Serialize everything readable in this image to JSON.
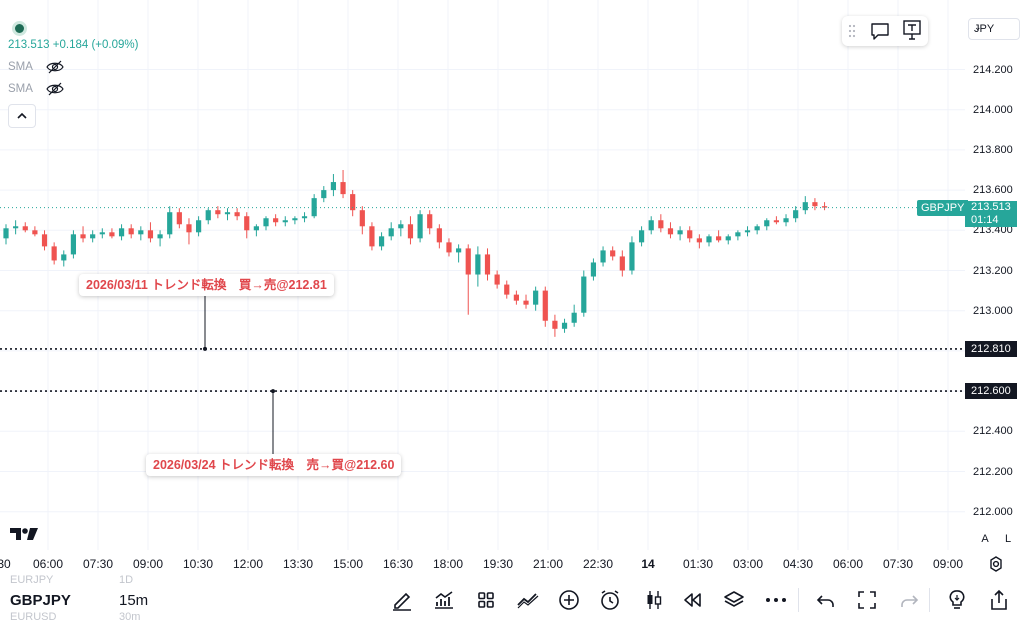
{
  "legend": {
    "price_line": "213.513 +0.184 (+0.09%)",
    "indicators": [
      "SMA",
      "SMA"
    ]
  },
  "currency": {
    "selected": "JPY"
  },
  "price_axis": {
    "ticks": [
      "214.200",
      "214.000",
      "213.800",
      "213.600",
      "213.400",
      "213.200",
      "213.000",
      "212.800",
      "212.600",
      "212.400",
      "212.200",
      "212.000"
    ]
  },
  "current_price": {
    "symbol_label": "GBPJPY",
    "price": "213.513",
    "countdown": "01:14",
    "value": 213.513
  },
  "horizontal_lines": [
    {
      "label": "212.810",
      "value": 212.81
    },
    {
      "label": "212.600",
      "value": 212.6
    }
  ],
  "notes": {
    "upper": "2026/03/11 トレンド転換　買→売@212.81",
    "lower": "2026/03/24 トレンド転換　売→買@212.60"
  },
  "time_axis": {
    "ticks": [
      "30",
      "06:00",
      "07:30",
      "09:00",
      "10:30",
      "12:00",
      "13:30",
      "15:00",
      "16:30",
      "18:00",
      "19:30",
      "21:00",
      "22:30",
      "14",
      "01:30",
      "03:00",
      "04:30",
      "06:00",
      "07:30",
      "09:00"
    ]
  },
  "scale_buttons": {
    "auto": "A",
    "log": "L"
  },
  "bottom": {
    "symbol_prev": "EURJPY",
    "symbol": "GBPJPY",
    "symbol_next": "EURUSD",
    "tf_prev": "1D",
    "tf": "15m",
    "tf_next": "30m"
  },
  "colors": {
    "up": "#26a69a",
    "down": "#ef5350",
    "note_text": "#e0474c",
    "price_box": "#26a69a"
  },
  "icons": [
    "pencil-icon",
    "indicators-icon",
    "grid-icon",
    "trend-icon",
    "plus-circle-icon",
    "alarm-icon",
    "candles-icon",
    "replay-icon",
    "layers-icon",
    "more-icon",
    "undo-icon",
    "fullscreen-icon",
    "redo-icon",
    "idea-icon",
    "share-icon"
  ],
  "chart_data": {
    "type": "candlestick",
    "symbol": "GBPJPY",
    "interval": "15m",
    "ylim": [
      211.96,
      214.32
    ],
    "candles": [
      [
        213.36,
        213.43,
        213.33,
        213.41
      ],
      [
        213.41,
        213.45,
        213.38,
        213.42
      ],
      [
        213.42,
        213.44,
        213.39,
        213.4
      ],
      [
        213.4,
        213.42,
        213.37,
        213.38
      ],
      [
        213.38,
        213.4,
        213.3,
        213.32
      ],
      [
        213.32,
        213.34,
        213.23,
        213.25
      ],
      [
        213.25,
        213.3,
        213.22,
        213.28
      ],
      [
        213.28,
        213.4,
        213.26,
        213.38
      ],
      [
        213.38,
        213.42,
        213.34,
        213.36
      ],
      [
        213.36,
        213.4,
        213.34,
        213.38
      ],
      [
        213.38,
        213.41,
        213.36,
        213.39
      ],
      [
        213.39,
        213.41,
        213.36,
        213.37
      ],
      [
        213.37,
        213.43,
        213.35,
        213.41
      ],
      [
        213.41,
        213.43,
        213.36,
        213.38
      ],
      [
        213.38,
        213.42,
        213.35,
        213.4
      ],
      [
        213.4,
        213.44,
        213.34,
        213.36
      ],
      [
        213.36,
        213.4,
        213.32,
        213.38
      ],
      [
        213.38,
        213.52,
        213.36,
        213.49
      ],
      [
        213.49,
        213.51,
        213.41,
        213.43
      ],
      [
        213.43,
        213.46,
        213.33,
        213.39
      ],
      [
        213.39,
        213.47,
        213.37,
        213.45
      ],
      [
        213.45,
        213.51,
        213.43,
        213.5
      ],
      [
        213.5,
        213.52,
        213.46,
        213.48
      ],
      [
        213.48,
        213.51,
        213.45,
        213.49
      ],
      [
        213.49,
        213.51,
        213.45,
        213.47
      ],
      [
        213.47,
        213.49,
        213.36,
        213.4
      ],
      [
        213.4,
        213.43,
        213.37,
        213.42
      ],
      [
        213.42,
        213.47,
        213.4,
        213.46
      ],
      [
        213.46,
        213.48,
        213.42,
        213.44
      ],
      [
        213.44,
        213.47,
        213.42,
        213.45
      ],
      [
        213.45,
        213.47,
        213.43,
        213.46
      ],
      [
        213.46,
        213.49,
        213.44,
        213.47
      ],
      [
        213.47,
        213.58,
        213.46,
        213.56
      ],
      [
        213.56,
        213.62,
        213.54,
        213.6
      ],
      [
        213.6,
        213.68,
        213.57,
        213.64
      ],
      [
        213.64,
        213.7,
        213.56,
        213.58
      ],
      [
        213.58,
        213.6,
        213.47,
        213.5
      ],
      [
        213.5,
        213.52,
        213.38,
        213.42
      ],
      [
        213.42,
        213.44,
        213.3,
        213.32
      ],
      [
        213.32,
        213.39,
        213.3,
        213.37
      ],
      [
        213.37,
        213.44,
        213.35,
        213.41
      ],
      [
        213.41,
        213.45,
        213.37,
        213.43
      ],
      [
        213.43,
        213.47,
        213.33,
        213.36
      ],
      [
        213.36,
        213.5,
        213.34,
        213.48
      ],
      [
        213.48,
        213.5,
        213.38,
        213.41
      ],
      [
        213.41,
        213.43,
        213.31,
        213.34
      ],
      [
        213.34,
        213.36,
        213.27,
        213.29
      ],
      [
        213.29,
        213.33,
        213.24,
        213.31
      ],
      [
        213.31,
        213.33,
        212.98,
        213.18
      ],
      [
        213.18,
        213.32,
        213.12,
        213.28
      ],
      [
        213.28,
        213.31,
        213.15,
        213.18
      ],
      [
        213.18,
        213.2,
        213.11,
        213.13
      ],
      [
        213.13,
        213.15,
        213.06,
        213.08
      ],
      [
        213.08,
        213.1,
        213.03,
        213.05
      ],
      [
        213.05,
        213.08,
        213.01,
        213.03
      ],
      [
        213.03,
        213.12,
        213.0,
        213.1
      ],
      [
        213.1,
        213.12,
        212.92,
        212.95
      ],
      [
        212.95,
        212.98,
        212.87,
        212.91
      ],
      [
        212.91,
        212.96,
        212.89,
        212.94
      ],
      [
        212.94,
        213.03,
        212.92,
        212.99
      ],
      [
        212.99,
        213.2,
        212.97,
        213.17
      ],
      [
        213.17,
        213.26,
        213.15,
        213.24
      ],
      [
        213.24,
        213.32,
        213.22,
        213.3
      ],
      [
        213.3,
        213.32,
        213.25,
        213.27
      ],
      [
        213.27,
        213.3,
        213.17,
        213.2
      ],
      [
        213.2,
        213.37,
        213.18,
        213.34
      ],
      [
        213.34,
        213.42,
        213.32,
        213.4
      ],
      [
        213.4,
        213.47,
        213.38,
        213.45
      ],
      [
        213.45,
        213.48,
        213.39,
        213.41
      ],
      [
        213.41,
        213.44,
        213.36,
        213.38
      ],
      [
        213.38,
        213.42,
        213.35,
        213.4
      ],
      [
        213.4,
        213.42,
        213.34,
        213.36
      ],
      [
        213.36,
        213.38,
        213.31,
        213.34
      ],
      [
        213.34,
        213.38,
        213.32,
        213.37
      ],
      [
        213.37,
        213.4,
        213.34,
        213.35
      ],
      [
        213.35,
        213.38,
        213.33,
        213.37
      ],
      [
        213.37,
        213.4,
        213.35,
        213.39
      ],
      [
        213.39,
        213.42,
        213.37,
        213.4
      ],
      [
        213.4,
        213.43,
        213.38,
        213.42
      ],
      [
        213.42,
        213.46,
        213.4,
        213.45
      ],
      [
        213.45,
        213.47,
        213.43,
        213.44
      ],
      [
        213.44,
        213.48,
        213.42,
        213.46
      ],
      [
        213.46,
        213.52,
        213.44,
        213.5
      ],
      [
        213.5,
        213.57,
        213.48,
        213.54
      ],
      [
        213.54,
        213.56,
        213.5,
        213.52
      ],
      [
        213.52,
        213.54,
        213.5,
        213.513
      ]
    ]
  }
}
